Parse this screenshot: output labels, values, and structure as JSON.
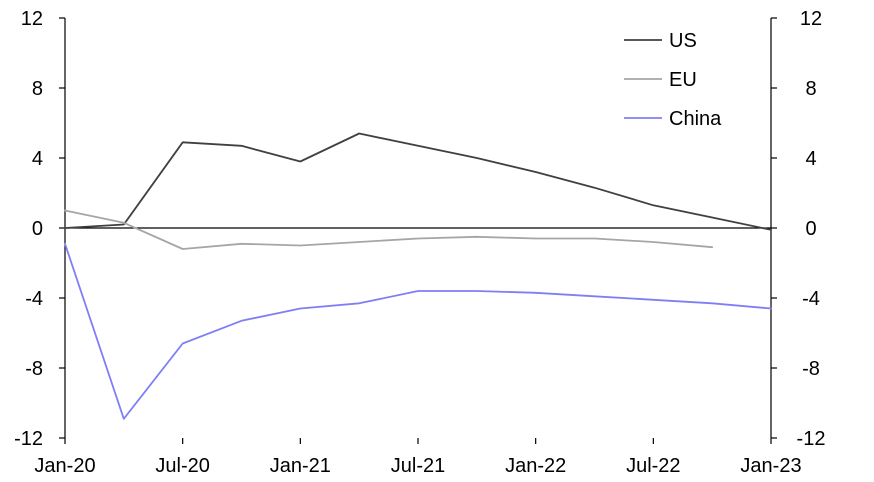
{
  "chart_data": {
    "type": "line",
    "title": "",
    "xlabel": "",
    "ylabel": "",
    "ylim": [
      -12,
      12
    ],
    "y_ticks": [
      12,
      8,
      4,
      0,
      -4,
      -8,
      -12
    ],
    "y_tick_labels": [
      "12",
      "8",
      "4",
      "0",
      "-4",
      "-8",
      "-12"
    ],
    "secondary_y_ticks": [
      12,
      8,
      4,
      0,
      -4,
      -8,
      -12
    ],
    "secondary_y_tick_labels": [
      "12",
      "8",
      "4",
      "0",
      "-4",
      "-8",
      "-12"
    ],
    "x_tick_labels": [
      "Jan-20",
      "Jul-20",
      "Jan-21",
      "Jul-21",
      "Jan-22",
      "Jul-22",
      "Jan-23"
    ],
    "x": [
      "2020-01",
      "2020-04",
      "2020-07",
      "2020-10",
      "2021-01",
      "2021-04",
      "2021-07",
      "2021-10",
      "2022-01",
      "2022-04",
      "2022-07",
      "2022-10",
      "2023-01"
    ],
    "grid": false,
    "zero_line": true,
    "legend_position": "top-right",
    "series": [
      {
        "name": "US",
        "color": "#404040",
        "values": [
          0.0,
          0.2,
          4.9,
          4.7,
          3.8,
          5.4,
          4.7,
          4.0,
          3.2,
          2.3,
          1.3,
          0.6,
          -0.1
        ]
      },
      {
        "name": "EU",
        "color": "#a6a6a6",
        "values": [
          1.0,
          0.3,
          -1.2,
          -0.9,
          -1.0,
          -0.8,
          -0.6,
          -0.5,
          -0.6,
          -0.6,
          -0.8,
          -1.1,
          null
        ]
      },
      {
        "name": "China",
        "color": "#7f7ff5",
        "values": [
          -0.9,
          -10.9,
          -6.6,
          -5.3,
          -4.6,
          -4.3,
          -3.6,
          -3.6,
          -3.7,
          -3.9,
          -4.1,
          -4.3,
          -4.6
        ]
      }
    ]
  }
}
